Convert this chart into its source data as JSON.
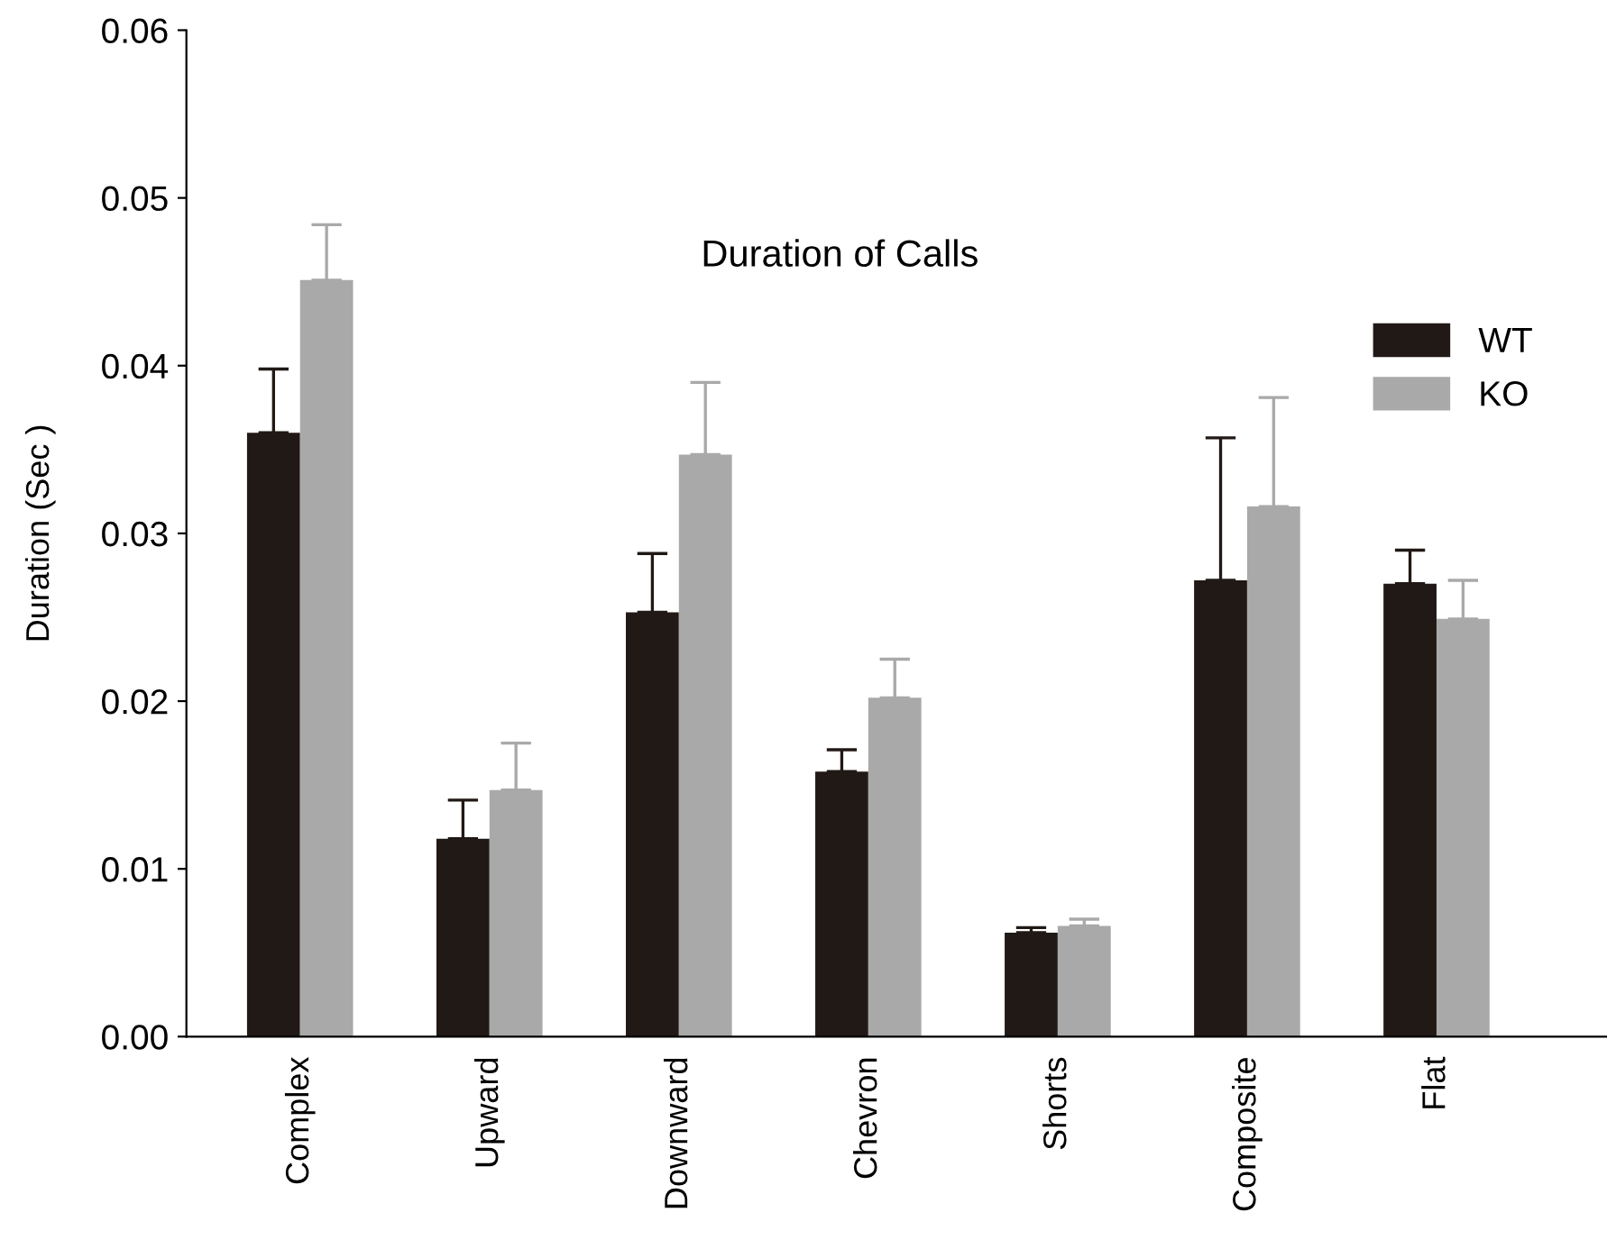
{
  "chart_data": {
    "type": "bar",
    "title": "Duration of Calls",
    "ylabel": "Duration (Sec )",
    "categories": [
      "Complex",
      "Upward",
      "Downward",
      "Chevron",
      "Shorts",
      "Composite",
      "Flat"
    ],
    "series": [
      {
        "name": "WT",
        "color": "#211915",
        "values": [
          0.036,
          0.0118,
          0.0253,
          0.0158,
          0.0062,
          0.0272,
          0.027
        ],
        "errors": [
          [
            0.036,
            0.0398
          ],
          [
            0.0118,
            0.0141
          ],
          [
            0.0253,
            0.0288
          ],
          [
            0.0158,
            0.0171
          ],
          [
            0.0062,
            0.0065
          ],
          [
            0.0272,
            0.0357
          ],
          [
            0.027,
            0.029
          ]
        ]
      },
      {
        "name": "KO",
        "color": "#a9a9a9",
        "values": [
          0.0451,
          0.0147,
          0.0347,
          0.0202,
          0.0066,
          0.0316,
          0.0249
        ],
        "errors": [
          [
            0.0451,
            0.0484
          ],
          [
            0.0147,
            0.0175
          ],
          [
            0.0347,
            0.039
          ],
          [
            0.0202,
            0.0225
          ],
          [
            0.0066,
            0.007
          ],
          [
            0.0316,
            0.0381
          ],
          [
            0.0249,
            0.0272
          ]
        ]
      }
    ],
    "ylim": [
      0,
      0.06
    ],
    "yticks": [
      {
        "value": 0,
        "label": "0.00"
      },
      {
        "value": 0.01,
        "label": "0.01"
      },
      {
        "value": 0.02,
        "label": "0.02"
      },
      {
        "value": 0.03,
        "label": "0.03"
      },
      {
        "value": 0.04,
        "label": "0.04"
      },
      {
        "value": 0.05,
        "label": "0.05"
      },
      {
        "value": 0.06,
        "label": "0.06"
      }
    ],
    "grid": false,
    "legend": "top right"
  }
}
